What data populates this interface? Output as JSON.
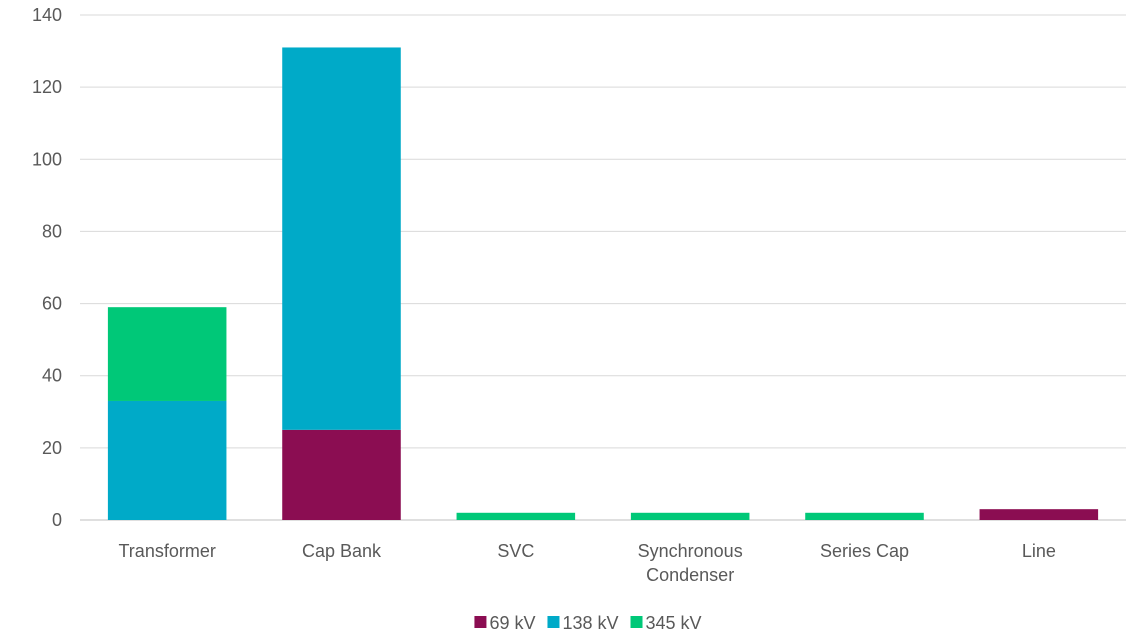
{
  "chart_data": {
    "type": "bar",
    "stacked": true,
    "categories": [
      "Transformer",
      "Cap Bank",
      "SVC",
      "Synchronous Condenser",
      "Series Cap",
      "Line"
    ],
    "category_label_lines": [
      [
        "Transformer"
      ],
      [
        "Cap Bank"
      ],
      [
        "SVC"
      ],
      [
        "Synchronous",
        "Condenser"
      ],
      [
        "Series Cap"
      ],
      [
        "Line"
      ]
    ],
    "series": [
      {
        "name": "69 kV",
        "color": "#8B0D52",
        "values": [
          0,
          25,
          0,
          0,
          0,
          3
        ]
      },
      {
        "name": "138 kV",
        "color": "#00AAC8",
        "values": [
          33,
          106,
          0,
          0,
          0,
          0
        ]
      },
      {
        "name": "345 kV",
        "color": "#00C878",
        "values": [
          26,
          0,
          2,
          2,
          2,
          0
        ]
      }
    ],
    "ylim": [
      0,
      140
    ],
    "yticks": [
      "0",
      "20",
      "40",
      "60",
      "80",
      "100",
      "120",
      "140"
    ],
    "ytick_values": [
      0,
      20,
      40,
      60,
      80,
      100,
      120,
      140
    ],
    "grid": true,
    "legend_position": "bottom",
    "title": "",
    "xlabel": "",
    "ylabel": ""
  }
}
